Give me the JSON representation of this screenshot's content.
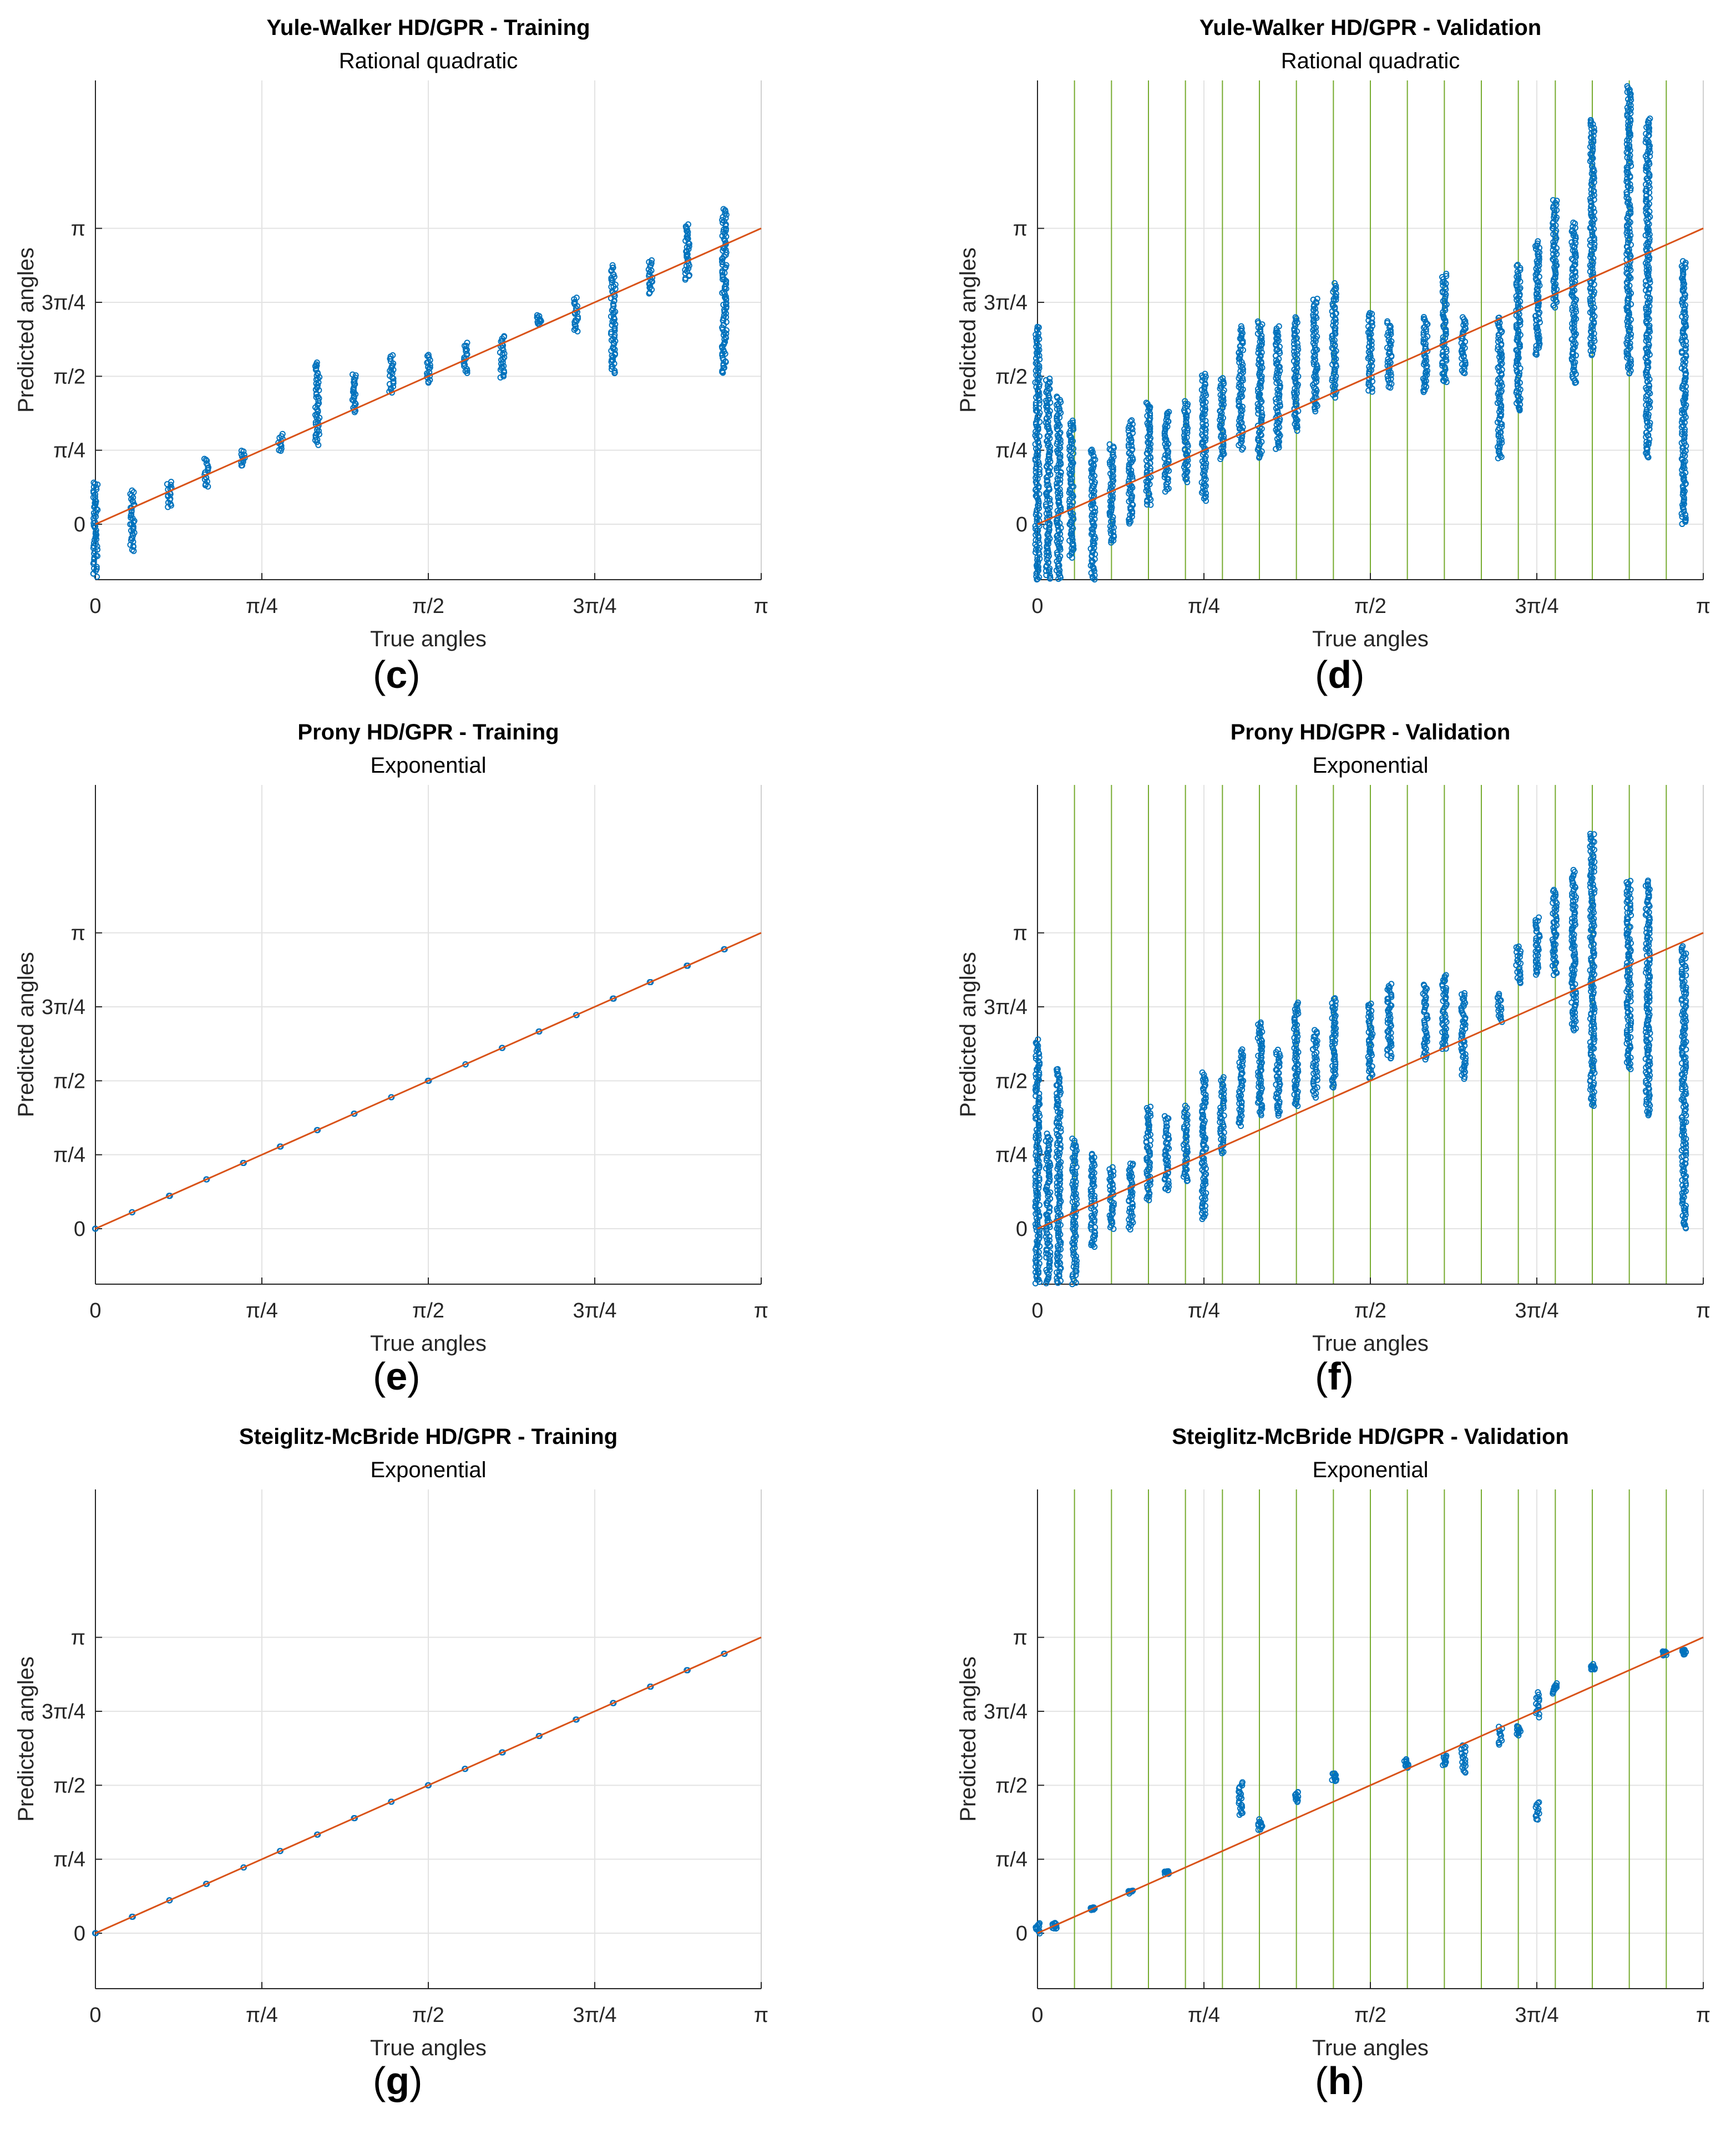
{
  "figure": {
    "panels_order": [
      "c",
      "d",
      "e",
      "f",
      "g",
      "h"
    ]
  },
  "colors": {
    "points": "#0072BD",
    "fit_line": "#D95319",
    "class_lines": "#77AC30",
    "grid": "#E3E3E3",
    "axes": "#262626",
    "background": "#FFFFFF"
  },
  "chart_data": [
    {
      "panel_label": "c",
      "type": "scatter",
      "title": "Yule-Walker HD/GPR - Training",
      "subtitle": "Rational quadratic",
      "xlabel": "True angles",
      "ylabel": "Predicted angles",
      "xlim": [
        0,
        3.1416
      ],
      "ylim": [
        -0.589,
        2.3562
      ],
      "xticks": [
        0,
        0.7854,
        1.5708,
        2.3562,
        3.1416
      ],
      "xticklabels": [
        "0",
        "π/4",
        "π/2",
        "3π/4",
        "π"
      ],
      "yticks": [
        0,
        0.7854,
        1.5708,
        2.3562,
        3.1416
      ],
      "yticklabels": [
        "0",
        "π/4",
        "π/2",
        "3π/4",
        "π"
      ],
      "grid": true,
      "reference_line": "y = x",
      "class_lines": false,
      "point_columns": [
        {
          "x": 0.0,
          "y_min": -0.55,
          "y_max": 0.45
        },
        {
          "x": 0.1745,
          "y_min": -0.28,
          "y_max": 0.35
        },
        {
          "x": 0.3491,
          "y_min": 0.18,
          "y_max": 0.45
        },
        {
          "x": 0.5236,
          "y_min": 0.4,
          "y_max": 0.7
        },
        {
          "x": 0.6981,
          "y_min": 0.62,
          "y_max": 0.78
        },
        {
          "x": 0.8727,
          "y_min": 0.78,
          "y_max": 0.95
        },
        {
          "x": 1.0472,
          "y_min": 0.85,
          "y_max": 1.72
        },
        {
          "x": 1.2217,
          "y_min": 1.18,
          "y_max": 1.6
        },
        {
          "x": 1.3963,
          "y_min": 1.4,
          "y_max": 1.8
        },
        {
          "x": 1.5708,
          "y_min": 1.5,
          "y_max": 1.8
        },
        {
          "x": 1.7453,
          "y_min": 1.6,
          "y_max": 1.92
        },
        {
          "x": 1.9199,
          "y_min": 1.55,
          "y_max": 2.0
        },
        {
          "x": 2.0944,
          "y_min": 2.12,
          "y_max": 2.22
        },
        {
          "x": 2.2689,
          "y_min": 2.05,
          "y_max": 2.4
        },
        {
          "x": 2.4435,
          "y_min": 1.6,
          "y_max": 2.75
        },
        {
          "x": 2.618,
          "y_min": 2.45,
          "y_max": 2.8
        },
        {
          "x": 2.7925,
          "y_min": 2.6,
          "y_max": 3.18
        },
        {
          "x": 2.9671,
          "y_min": 1.6,
          "y_max": 3.35
        }
      ]
    },
    {
      "panel_label": "d",
      "type": "scatter",
      "title": "Yule-Walker HD/GPR - Validation",
      "subtitle": "Rational quadratic",
      "xlabel": "True angles",
      "ylabel": "Predicted angles",
      "xlim": [
        0,
        3.1416
      ],
      "ylim": [
        -0.589,
        2.3562
      ],
      "xticks": [
        0,
        0.7854,
        1.5708,
        2.3562,
        3.1416
      ],
      "xticklabels": [
        "0",
        "π/4",
        "π/2",
        "3π/4",
        "π"
      ],
      "yticks": [
        0,
        0.7854,
        1.5708,
        2.3562,
        3.1416
      ],
      "yticklabels": [
        "0",
        "π/4",
        "π/2",
        "3π/4",
        "π"
      ],
      "grid": true,
      "reference_line": "y = x",
      "class_lines": true,
      "class_line_x": [
        0,
        0.1745,
        0.3491,
        0.5236,
        0.6981,
        0.8727,
        1.0472,
        1.2217,
        1.3963,
        1.5708,
        1.7453,
        1.9199,
        2.0944,
        2.2689,
        2.4435,
        2.618,
        2.7925,
        2.9671
      ],
      "point_columns": [
        {
          "x": 0.0,
          "y_min": -1.5,
          "y_max": 2.1
        },
        {
          "x": 0.05,
          "y_min": -0.9,
          "y_max": 1.55
        },
        {
          "x": 0.1,
          "y_min": -0.75,
          "y_max": 1.35
        },
        {
          "x": 0.16,
          "y_min": -0.35,
          "y_max": 1.1
        },
        {
          "x": 0.2618,
          "y_min": -0.6,
          "y_max": 0.8
        },
        {
          "x": 0.35,
          "y_min": -0.2,
          "y_max": 0.85
        },
        {
          "x": 0.44,
          "y_min": 0.0,
          "y_max": 1.1
        },
        {
          "x": 0.5236,
          "y_min": 0.2,
          "y_max": 1.3
        },
        {
          "x": 0.61,
          "y_min": 0.35,
          "y_max": 1.2
        },
        {
          "x": 0.7,
          "y_min": 0.45,
          "y_max": 1.3
        },
        {
          "x": 0.7854,
          "y_min": 0.25,
          "y_max": 1.6
        },
        {
          "x": 0.87,
          "y_min": 0.7,
          "y_max": 1.55
        },
        {
          "x": 0.96,
          "y_min": 0.8,
          "y_max": 2.1
        },
        {
          "x": 1.05,
          "y_min": 0.7,
          "y_max": 2.15
        },
        {
          "x": 1.1345,
          "y_min": 0.8,
          "y_max": 2.1
        },
        {
          "x": 1.22,
          "y_min": 1.0,
          "y_max": 2.2
        },
        {
          "x": 1.31,
          "y_min": 1.2,
          "y_max": 2.4
        },
        {
          "x": 1.4,
          "y_min": 1.35,
          "y_max": 2.55
        },
        {
          "x": 1.5708,
          "y_min": 1.4,
          "y_max": 2.25
        },
        {
          "x": 1.66,
          "y_min": 1.45,
          "y_max": 2.15
        },
        {
          "x": 1.83,
          "y_min": 1.4,
          "y_max": 2.2
        },
        {
          "x": 1.92,
          "y_min": 1.5,
          "y_max": 2.65
        },
        {
          "x": 2.01,
          "y_min": 1.6,
          "y_max": 2.2
        },
        {
          "x": 2.1817,
          "y_min": 0.7,
          "y_max": 2.2
        },
        {
          "x": 2.2689,
          "y_min": 1.2,
          "y_max": 2.75
        },
        {
          "x": 2.36,
          "y_min": 1.8,
          "y_max": 3.0
        },
        {
          "x": 2.44,
          "y_min": 2.3,
          "y_max": 3.45
        },
        {
          "x": 2.5307,
          "y_min": 1.5,
          "y_max": 3.2
        },
        {
          "x": 2.618,
          "y_min": 1.8,
          "y_max": 4.3
        },
        {
          "x": 2.79,
          "y_min": 1.6,
          "y_max": 4.65
        },
        {
          "x": 2.88,
          "y_min": 0.7,
          "y_max": 4.3
        },
        {
          "x": 3.05,
          "y_min": 0.0,
          "y_max": 2.8
        }
      ]
    },
    {
      "panel_label": "e",
      "type": "scatter",
      "title": "Prony HD/GPR - Training",
      "subtitle": "Exponential",
      "xlabel": "True angles",
      "ylabel": "Predicted angles",
      "xlim": [
        0,
        3.1416
      ],
      "ylim": [
        -0.589,
        2.3562
      ],
      "xticks": [
        0,
        0.7854,
        1.5708,
        2.3562,
        3.1416
      ],
      "xticklabels": [
        "0",
        "π/4",
        "π/2",
        "3π/4",
        "π"
      ],
      "yticks": [
        0,
        0.7854,
        1.5708,
        2.3562,
        3.1416
      ],
      "yticklabels": [
        "0",
        "π/4",
        "π/2",
        "3π/4",
        "π"
      ],
      "grid": true,
      "reference_line": "y = x",
      "class_lines": false,
      "point_columns": [
        {
          "x": 0.0,
          "y_min": 0.0,
          "y_max": 0.0
        },
        {
          "x": 0.1745,
          "y_min": 0.1745,
          "y_max": 0.1745
        },
        {
          "x": 0.3491,
          "y_min": 0.3491,
          "y_max": 0.3491
        },
        {
          "x": 0.5236,
          "y_min": 0.5236,
          "y_max": 0.5236
        },
        {
          "x": 0.6981,
          "y_min": 0.6981,
          "y_max": 0.6981
        },
        {
          "x": 0.8727,
          "y_min": 0.8727,
          "y_max": 0.8727
        },
        {
          "x": 1.0472,
          "y_min": 1.0472,
          "y_max": 1.0472
        },
        {
          "x": 1.2217,
          "y_min": 1.2217,
          "y_max": 1.2217
        },
        {
          "x": 1.3963,
          "y_min": 1.3963,
          "y_max": 1.3963
        },
        {
          "x": 1.5708,
          "y_min": 1.5708,
          "y_max": 1.5708
        },
        {
          "x": 1.7453,
          "y_min": 1.7453,
          "y_max": 1.7453
        },
        {
          "x": 1.9199,
          "y_min": 1.9199,
          "y_max": 1.9199
        },
        {
          "x": 2.0944,
          "y_min": 2.0944,
          "y_max": 2.0944
        },
        {
          "x": 2.2689,
          "y_min": 2.2689,
          "y_max": 2.2689
        },
        {
          "x": 2.4435,
          "y_min": 2.4435,
          "y_max": 2.4435
        },
        {
          "x": 2.618,
          "y_min": 2.618,
          "y_max": 2.618
        },
        {
          "x": 2.7925,
          "y_min": 2.7925,
          "y_max": 2.7925
        },
        {
          "x": 2.9671,
          "y_min": 2.9671,
          "y_max": 2.9671
        }
      ]
    },
    {
      "panel_label": "f",
      "type": "scatter",
      "title": "Prony HD/GPR - Validation",
      "subtitle": "Exponential",
      "xlabel": "True angles",
      "ylabel": "Predicted angles",
      "xlim": [
        0,
        3.1416
      ],
      "ylim": [
        -0.589,
        2.3562
      ],
      "xticks": [
        0,
        0.7854,
        1.5708,
        2.3562,
        3.1416
      ],
      "xticklabels": [
        "0",
        "π/4",
        "π/2",
        "3π/4",
        "π"
      ],
      "yticks": [
        0,
        0.7854,
        1.5708,
        2.3562,
        3.1416
      ],
      "yticklabels": [
        "0",
        "π/4",
        "π/2",
        "3π/4",
        "π"
      ],
      "grid": true,
      "reference_line": "y = x",
      "class_lines": true,
      "class_line_x": [
        0,
        0.1745,
        0.3491,
        0.5236,
        0.6981,
        0.8727,
        1.0472,
        1.2217,
        1.3963,
        1.5708,
        1.7453,
        1.9199,
        2.0944,
        2.2689,
        2.4435,
        2.618,
        2.7925,
        2.9671
      ],
      "point_columns": [
        {
          "x": 0.0,
          "y_min": -1.2,
          "y_max": 2.0
        },
        {
          "x": 0.05,
          "y_min": -0.9,
          "y_max": 1.0
        },
        {
          "x": 0.1,
          "y_min": -0.8,
          "y_max": 1.7
        },
        {
          "x": 0.1745,
          "y_min": -0.8,
          "y_max": 0.95
        },
        {
          "x": 0.2618,
          "y_min": -0.2,
          "y_max": 0.8
        },
        {
          "x": 0.35,
          "y_min": 0.0,
          "y_max": 0.65
        },
        {
          "x": 0.44,
          "y_min": 0.0,
          "y_max": 0.7
        },
        {
          "x": 0.5236,
          "y_min": 0.3,
          "y_max": 1.3
        },
        {
          "x": 0.61,
          "y_min": 0.4,
          "y_max": 1.2
        },
        {
          "x": 0.7,
          "y_min": 0.5,
          "y_max": 1.3
        },
        {
          "x": 0.7854,
          "y_min": 0.1,
          "y_max": 1.65
        },
        {
          "x": 0.87,
          "y_min": 0.8,
          "y_max": 1.6
        },
        {
          "x": 0.96,
          "y_min": 1.1,
          "y_max": 1.9
        },
        {
          "x": 1.05,
          "y_min": 1.2,
          "y_max": 2.2
        },
        {
          "x": 1.1345,
          "y_min": 1.2,
          "y_max": 1.9
        },
        {
          "x": 1.22,
          "y_min": 1.3,
          "y_max": 2.4
        },
        {
          "x": 1.31,
          "y_min": 1.4,
          "y_max": 2.1
        },
        {
          "x": 1.4,
          "y_min": 1.5,
          "y_max": 2.45
        },
        {
          "x": 1.5708,
          "y_min": 1.6,
          "y_max": 2.4
        },
        {
          "x": 1.66,
          "y_min": 1.8,
          "y_max": 2.6
        },
        {
          "x": 1.83,
          "y_min": 1.8,
          "y_max": 2.6
        },
        {
          "x": 1.92,
          "y_min": 1.9,
          "y_max": 2.7
        },
        {
          "x": 2.01,
          "y_min": 1.6,
          "y_max": 2.5
        },
        {
          "x": 2.1817,
          "y_min": 2.2,
          "y_max": 2.5
        },
        {
          "x": 2.2689,
          "y_min": 2.6,
          "y_max": 3.0
        },
        {
          "x": 2.36,
          "y_min": 2.7,
          "y_max": 3.3
        },
        {
          "x": 2.44,
          "y_min": 2.7,
          "y_max": 3.6
        },
        {
          "x": 2.5307,
          "y_min": 2.1,
          "y_max": 3.8
        },
        {
          "x": 2.618,
          "y_min": 1.3,
          "y_max": 4.2
        },
        {
          "x": 2.79,
          "y_min": 1.7,
          "y_max": 3.7
        },
        {
          "x": 2.88,
          "y_min": 1.2,
          "y_max": 3.7
        },
        {
          "x": 3.05,
          "y_min": 0.0,
          "y_max": 3.0
        }
      ]
    },
    {
      "panel_label": "g",
      "type": "scatter",
      "title": "Steiglitz-McBride HD/GPR - Training",
      "subtitle": "Exponential",
      "xlabel": "True angles",
      "ylabel": "Predicted angles",
      "xlim": [
        0,
        3.1416
      ],
      "ylim": [
        -0.589,
        2.3562
      ],
      "xticks": [
        0,
        0.7854,
        1.5708,
        2.3562,
        3.1416
      ],
      "xticklabels": [
        "0",
        "π/4",
        "π/2",
        "3π/4",
        "π"
      ],
      "yticks": [
        0,
        0.7854,
        1.5708,
        2.3562,
        3.1416
      ],
      "yticklabels": [
        "0",
        "π/4",
        "π/2",
        "3π/4",
        "π"
      ],
      "grid": true,
      "reference_line": "y = x",
      "class_lines": false,
      "point_columns": [
        {
          "x": 0.0,
          "y_min": 0.0,
          "y_max": 0.0
        },
        {
          "x": 0.1745,
          "y_min": 0.1745,
          "y_max": 0.1745
        },
        {
          "x": 0.3491,
          "y_min": 0.3491,
          "y_max": 0.3491
        },
        {
          "x": 0.5236,
          "y_min": 0.5236,
          "y_max": 0.5236
        },
        {
          "x": 0.6981,
          "y_min": 0.6981,
          "y_max": 0.6981
        },
        {
          "x": 0.8727,
          "y_min": 0.8727,
          "y_max": 0.8727
        },
        {
          "x": 1.0472,
          "y_min": 1.0472,
          "y_max": 1.0472
        },
        {
          "x": 1.2217,
          "y_min": 1.2217,
          "y_max": 1.2217
        },
        {
          "x": 1.3963,
          "y_min": 1.3963,
          "y_max": 1.3963
        },
        {
          "x": 1.5708,
          "y_min": 1.5708,
          "y_max": 1.5708
        },
        {
          "x": 1.7453,
          "y_min": 1.7453,
          "y_max": 1.7453
        },
        {
          "x": 1.9199,
          "y_min": 1.9199,
          "y_max": 1.9199
        },
        {
          "x": 2.0944,
          "y_min": 2.0944,
          "y_max": 2.0944
        },
        {
          "x": 2.2689,
          "y_min": 2.2689,
          "y_max": 2.2689
        },
        {
          "x": 2.4435,
          "y_min": 2.4435,
          "y_max": 2.4435
        },
        {
          "x": 2.618,
          "y_min": 2.618,
          "y_max": 2.618
        },
        {
          "x": 2.7925,
          "y_min": 2.7925,
          "y_max": 2.7925
        },
        {
          "x": 2.9671,
          "y_min": 2.9671,
          "y_max": 2.9671
        }
      ]
    },
    {
      "panel_label": "h",
      "type": "scatter",
      "title": "Steiglitz-McBride HD/GPR - Validation",
      "subtitle": "Exponential",
      "xlabel": "True angles",
      "ylabel": "Predicted angles",
      "xlim": [
        0,
        3.1416
      ],
      "ylim": [
        -0.589,
        2.3562
      ],
      "xticks": [
        0,
        0.7854,
        1.5708,
        2.3562,
        3.1416
      ],
      "xticklabels": [
        "0",
        "π/4",
        "π/2",
        "3π/4",
        "π"
      ],
      "yticks": [
        0,
        0.7854,
        1.5708,
        2.3562,
        3.1416
      ],
      "yticklabels": [
        "0",
        "π/4",
        "π/2",
        "3π/4",
        "π"
      ],
      "grid": true,
      "reference_line": "y = x",
      "class_lines": true,
      "class_line_x": [
        0,
        0.1745,
        0.3491,
        0.5236,
        0.6981,
        0.8727,
        1.0472,
        1.2217,
        1.3963,
        1.5708,
        1.7453,
        1.9199,
        2.0944,
        2.2689,
        2.4435,
        2.618,
        2.7925,
        2.9671
      ],
      "point_columns": [
        {
          "x": 0.0,
          "y_min": 0.0,
          "y_max": 0.1
        },
        {
          "x": 0.08,
          "y_min": 0.05,
          "y_max": 0.1
        },
        {
          "x": 0.26,
          "y_min": 0.25,
          "y_max": 0.27
        },
        {
          "x": 0.44,
          "y_min": 0.43,
          "y_max": 0.45
        },
        {
          "x": 0.61,
          "y_min": 0.63,
          "y_max": 0.66
        },
        {
          "x": 0.96,
          "y_min": 1.25,
          "y_max": 1.6
        },
        {
          "x": 1.05,
          "y_min": 1.1,
          "y_max": 1.2
        },
        {
          "x": 1.22,
          "y_min": 1.4,
          "y_max": 1.5
        },
        {
          "x": 1.4,
          "y_min": 1.62,
          "y_max": 1.7
        },
        {
          "x": 1.74,
          "y_min": 1.75,
          "y_max": 1.85
        },
        {
          "x": 1.92,
          "y_min": 1.78,
          "y_max": 1.9
        },
        {
          "x": 2.01,
          "y_min": 1.7,
          "y_max": 2.0
        },
        {
          "x": 2.1817,
          "y_min": 2.0,
          "y_max": 2.2
        },
        {
          "x": 2.2689,
          "y_min": 2.1,
          "y_max": 2.2
        },
        {
          "x": 2.36,
          "y_min": 1.2,
          "y_max": 1.4
        },
        {
          "x": 2.36,
          "y_min": 2.3,
          "y_max": 2.55
        },
        {
          "x": 2.44,
          "y_min": 2.55,
          "y_max": 2.65
        },
        {
          "x": 2.62,
          "y_min": 2.8,
          "y_max": 2.85
        },
        {
          "x": 2.96,
          "y_min": 2.95,
          "y_max": 3.0
        },
        {
          "x": 3.05,
          "y_min": 2.96,
          "y_max": 3.01
        }
      ]
    }
  ]
}
